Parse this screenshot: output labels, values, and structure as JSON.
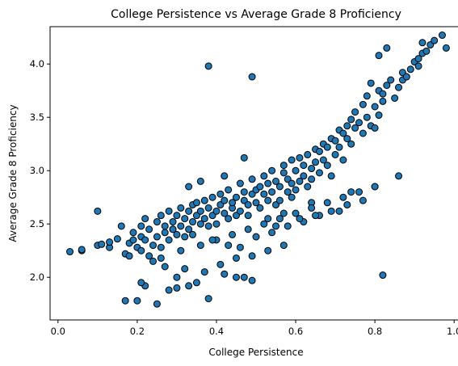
{
  "chart_data": {
    "type": "scatter",
    "title": "College Persistence vs Average Grade 8 Proficiency",
    "xlabel": "College Persistence",
    "ylabel": "Average Grade 8 Proficiency",
    "xlim": [
      -0.02,
      1.02
    ],
    "ylim": [
      1.6,
      4.35
    ],
    "xticks": [
      "0.0",
      "0.2",
      "0.4",
      "0.6",
      "0.8",
      "1.0"
    ],
    "yticks": [
      "2.0",
      "2.5",
      "3.0",
      "3.5",
      "4.0"
    ],
    "grid": false,
    "marker_face_color": "#1f77b4",
    "marker_edge_color": "#000000",
    "x": [
      0.03,
      0.06,
      0.06,
      0.1,
      0.11,
      0.13,
      0.13,
      0.15,
      0.16,
      0.17,
      0.18,
      0.18,
      0.19,
      0.19,
      0.2,
      0.21,
      0.21,
      0.21,
      0.22,
      0.22,
      0.23,
      0.23,
      0.24,
      0.25,
      0.25,
      0.26,
      0.26,
      0.27,
      0.27,
      0.28,
      0.28,
      0.29,
      0.29,
      0.3,
      0.3,
      0.31,
      0.31,
      0.32,
      0.32,
      0.33,
      0.33,
      0.34,
      0.34,
      0.35,
      0.35,
      0.36,
      0.36,
      0.37,
      0.37,
      0.38,
      0.38,
      0.39,
      0.39,
      0.4,
      0.4,
      0.41,
      0.41,
      0.42,
      0.42,
      0.43,
      0.43,
      0.44,
      0.44,
      0.45,
      0.45,
      0.46,
      0.46,
      0.47,
      0.47,
      0.48,
      0.48,
      0.49,
      0.49,
      0.5,
      0.5,
      0.51,
      0.51,
      0.52,
      0.52,
      0.53,
      0.53,
      0.54,
      0.54,
      0.55,
      0.55,
      0.56,
      0.56,
      0.57,
      0.57,
      0.58,
      0.58,
      0.59,
      0.59,
      0.6,
      0.6,
      0.61,
      0.61,
      0.62,
      0.62,
      0.63,
      0.63,
      0.64,
      0.64,
      0.65,
      0.65,
      0.66,
      0.66,
      0.67,
      0.67,
      0.68,
      0.68,
      0.69,
      0.69,
      0.7,
      0.7,
      0.71,
      0.71,
      0.72,
      0.72,
      0.73,
      0.73,
      0.74,
      0.74,
      0.75,
      0.75,
      0.76,
      0.77,
      0.77,
      0.78,
      0.78,
      0.79,
      0.79,
      0.8,
      0.8,
      0.81,
      0.81,
      0.82,
      0.82,
      0.83,
      0.84,
      0.85,
      0.86,
      0.87,
      0.87,
      0.88,
      0.89,
      0.9,
      0.91,
      0.91,
      0.92,
      0.93,
      0.94,
      0.95,
      0.97,
      0.98,
      0.1,
      0.17,
      0.2,
      0.22,
      0.25,
      0.28,
      0.3,
      0.33,
      0.35,
      0.38,
      0.42,
      0.45,
      0.47,
      0.49,
      0.49,
      0.53,
      0.55,
      0.57,
      0.59,
      0.62,
      0.64,
      0.66,
      0.71,
      0.74,
      0.8,
      0.81,
      0.82,
      0.83,
      0.86,
      0.92,
      0.26,
      0.31,
      0.36,
      0.4,
      0.44,
      0.48,
      0.52,
      0.56,
      0.6,
      0.64,
      0.68,
      0.72,
      0.76,
      0.8,
      0.29,
      0.34,
      0.39,
      0.43,
      0.46,
      0.5,
      0.54,
      0.58,
      0.61,
      0.65,
      0.69,
      0.73,
      0.77,
      0.24,
      0.27,
      0.32,
      0.37,
      0.41,
      0.45,
      0.49,
      0.53,
      0.57,
      0.21,
      0.3,
      0.38,
      0.47,
      0.33,
      0.36,
      0.42
    ],
    "y": [
      2.24,
      2.25,
      2.26,
      2.3,
      2.31,
      2.28,
      2.33,
      2.36,
      2.48,
      2.22,
      2.32,
      2.2,
      2.42,
      2.35,
      2.28,
      2.48,
      2.38,
      2.25,
      2.55,
      2.35,
      2.45,
      2.2,
      2.3,
      2.52,
      2.38,
      2.28,
      2.58,
      2.42,
      2.48,
      2.35,
      2.62,
      2.45,
      2.52,
      2.4,
      2.58,
      2.65,
      2.48,
      2.38,
      2.55,
      2.62,
      2.45,
      2.68,
      2.52,
      2.58,
      2.7,
      2.5,
      2.62,
      2.72,
      2.55,
      2.65,
      2.48,
      2.75,
      2.58,
      2.62,
      2.5,
      2.68,
      2.78,
      2.6,
      2.72,
      2.55,
      2.82,
      2.65,
      2.7,
      2.58,
      2.75,
      2.88,
      2.62,
      2.72,
      2.8,
      2.68,
      2.58,
      2.78,
      2.92,
      2.7,
      2.82,
      2.85,
      2.65,
      2.78,
      2.95,
      2.72,
      2.88,
      2.8,
      3.0,
      2.68,
      2.9,
      2.85,
      2.72,
      2.98,
      3.05,
      2.8,
      2.92,
      2.88,
      3.1,
      2.82,
      3.0,
      3.12,
      2.9,
      2.95,
      3.05,
      2.85,
      3.15,
      3.02,
      2.92,
      3.2,
      3.08,
      2.98,
      3.18,
      3.25,
      3.1,
      3.05,
      3.22,
      2.95,
      3.3,
      3.28,
      3.15,
      3.38,
      3.22,
      3.35,
      3.1,
      3.42,
      3.3,
      3.48,
      3.25,
      3.4,
      3.55,
      3.45,
      3.35,
      3.62,
      3.5,
      3.7,
      3.42,
      3.82,
      3.6,
      3.4,
      3.75,
      3.52,
      3.65,
      3.72,
      3.8,
      3.85,
      3.68,
      3.78,
      3.85,
      3.92,
      3.88,
      3.95,
      4.02,
      3.98,
      4.05,
      4.1,
      4.12,
      4.18,
      4.22,
      4.27,
      4.15,
      2.62,
      1.78,
      1.78,
      1.92,
      1.75,
      1.88,
      1.9,
      1.92,
      1.95,
      1.8,
      2.03,
      2.0,
      2.0,
      1.97,
      3.88,
      2.55,
      2.48,
      2.6,
      2.75,
      2.52,
      2.7,
      2.58,
      2.62,
      2.8,
      2.85,
      4.08,
      2.02,
      4.15,
      2.95,
      4.2,
      2.18,
      2.25,
      2.3,
      2.35,
      2.4,
      2.45,
      2.5,
      2.55,
      2.6,
      2.65,
      2.7,
      2.75,
      2.8,
      2.85,
      2.45,
      2.4,
      2.35,
      2.3,
      2.28,
      2.38,
      2.42,
      2.48,
      2.55,
      2.58,
      2.62,
      2.68,
      2.72,
      2.15,
      2.1,
      2.08,
      2.05,
      2.12,
      2.18,
      2.2,
      2.25,
      2.3,
      1.95,
      2.0,
      3.98,
      3.12,
      2.85,
      2.9,
      2.95
    ]
  }
}
